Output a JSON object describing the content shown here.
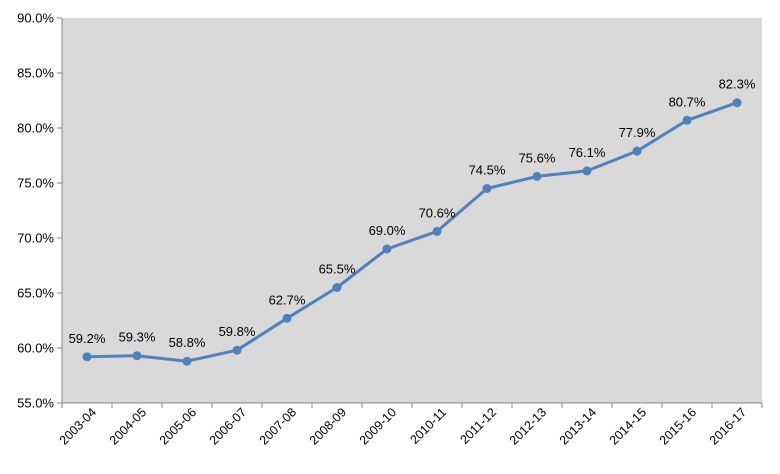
{
  "chart_data": {
    "type": "line",
    "title": "",
    "xlabel": "",
    "ylabel": "",
    "categories": [
      "2003-04",
      "2004-05",
      "2005-06",
      "2006-07",
      "2007-08",
      "2008-09",
      "2009-10",
      "2010-11",
      "2011-12",
      "2012-13",
      "2013-14",
      "2014-15",
      "2015-16",
      "2016-17"
    ],
    "series": [
      {
        "values": [
          59.2,
          59.3,
          58.8,
          59.8,
          62.7,
          65.5,
          69.0,
          70.6,
          74.5,
          75.6,
          76.1,
          77.9,
          80.7,
          82.3
        ],
        "labels": [
          "59.2%",
          "59.3%",
          "58.8%",
          "59.8%",
          "62.7%",
          "65.5%",
          "69.0%",
          "70.6%",
          "74.5%",
          "75.6%",
          "76.1%",
          "77.9%",
          "80.7%",
          "82.3%"
        ]
      }
    ],
    "ylim": [
      55.0,
      90.0
    ],
    "yticks": [
      55.0,
      60.0,
      65.0,
      70.0,
      75.0,
      80.0,
      85.0,
      90.0
    ],
    "ytick_labels": [
      "55.0%",
      "60.0%",
      "65.0%",
      "70.0%",
      "75.0%",
      "80.0%",
      "85.0%",
      "90.0%"
    ],
    "grid": false,
    "legend": "none",
    "colors": {
      "line": "#4f81bd",
      "plot_background": "#d9d9d9",
      "axis": "#868686"
    }
  }
}
